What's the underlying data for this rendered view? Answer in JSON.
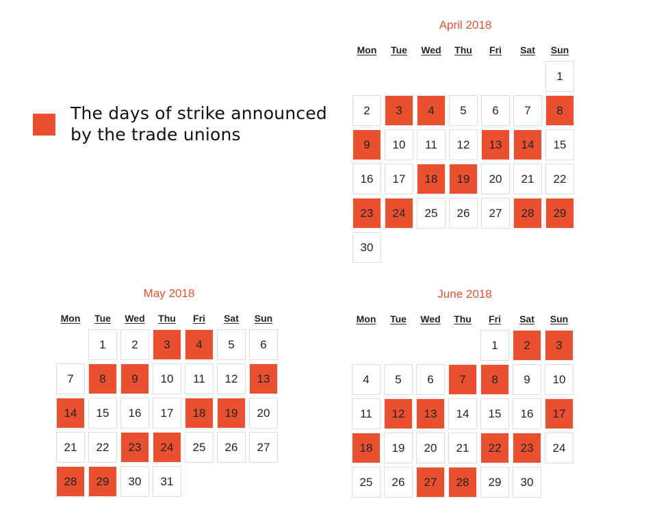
{
  "legend": {
    "text": "The days of strike announced by the trade unions",
    "color": "#e8502f"
  },
  "colors": {
    "strike": "#e8502f",
    "title": "#e8502f"
  },
  "weekdays": [
    "Mon",
    "Tue",
    "Wed",
    "Thu",
    "Fri",
    "Sat",
    "Sun"
  ],
  "calendars": [
    {
      "title": "April 2018",
      "first_weekday": 6,
      "days": 30,
      "strike_days": [
        3,
        4,
        8,
        9,
        13,
        14,
        18,
        19,
        23,
        24,
        28,
        29
      ]
    },
    {
      "title": "May 2018",
      "first_weekday": 1,
      "days": 31,
      "strike_days": [
        3,
        4,
        8,
        9,
        13,
        14,
        18,
        19,
        23,
        24,
        28,
        29
      ]
    },
    {
      "title": "June 2018",
      "first_weekday": 4,
      "days": 30,
      "strike_days": [
        2,
        3,
        7,
        8,
        12,
        13,
        17,
        18,
        22,
        23,
        27,
        28
      ]
    }
  ]
}
